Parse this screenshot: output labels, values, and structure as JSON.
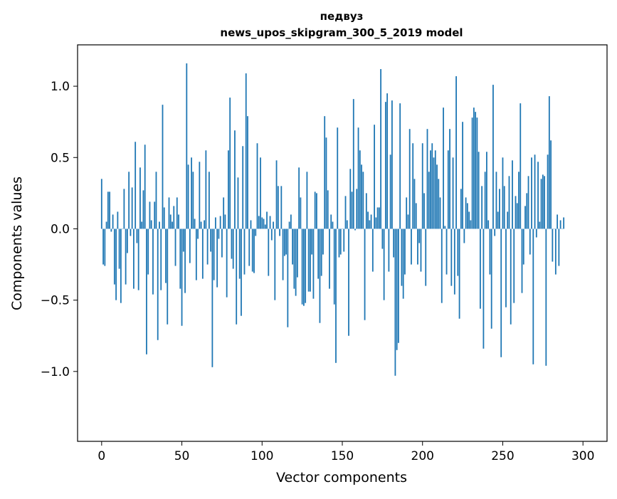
{
  "chart_data": {
    "type": "bar",
    "title": "педвуз",
    "subtitle": "news_upos_skipgram_300_5_2019 model",
    "xlabel": "Vector components",
    "ylabel": "Components values",
    "xlim": [
      -15,
      315
    ],
    "ylim": [
      -1.49,
      1.29
    ],
    "x_ticks": [
      0,
      50,
      100,
      150,
      200,
      250,
      300
    ],
    "y_ticks": [
      -1.0,
      -0.5,
      0.0,
      0.5,
      1.0
    ],
    "x_tick_labels": [
      "0",
      "50",
      "100",
      "150",
      "200",
      "250",
      "300"
    ],
    "y_tick_labels": [
      "−1.0",
      "−0.5",
      "0.0",
      "0.5",
      "1.0"
    ],
    "bar_color": "#1f77b4",
    "grid": false,
    "values": [
      0.35,
      -0.25,
      -0.26,
      0.05,
      0.26,
      0.26,
      -0.02,
      0.1,
      -0.39,
      -0.5,
      0.12,
      -0.28,
      -0.52,
      0.0,
      0.28,
      -0.39,
      -0.17,
      0.4,
      -0.05,
      0.29,
      -0.42,
      0.61,
      -0.1,
      -0.43,
      0.43,
      0.05,
      0.27,
      0.59,
      -0.88,
      -0.32,
      0.19,
      0.06,
      -0.46,
      0.19,
      0.4,
      -0.78,
      0.05,
      -0.43,
      0.87,
      0.15,
      -0.38,
      -0.67,
      0.22,
      0.1,
      0.05,
      0.16,
      -0.26,
      0.22,
      0.1,
      -0.42,
      -0.68,
      -0.16,
      -0.45,
      1.16,
      0.45,
      -0.24,
      0.5,
      0.4,
      0.07,
      -0.36,
      -0.07,
      0.47,
      0.05,
      -0.35,
      0.06,
      0.55,
      -0.25,
      0.4,
      -0.16,
      -0.97,
      -0.36,
      0.08,
      -0.41,
      -0.07,
      0.09,
      -0.2,
      0.22,
      0.1,
      -0.48,
      0.55,
      0.92,
      -0.21,
      -0.28,
      0.69,
      -0.67,
      0.36,
      -0.35,
      -0.61,
      0.58,
      -0.32,
      1.09,
      0.79,
      -0.26,
      0.06,
      -0.3,
      -0.31,
      -0.05,
      0.6,
      0.09,
      0.5,
      0.08,
      0.07,
      0.03,
      0.12,
      -0.33,
      0.09,
      -0.08,
      0.05,
      -0.5,
      0.48,
      0.3,
      -0.05,
      0.3,
      -0.36,
      -0.19,
      -0.18,
      -0.69,
      0.05,
      0.1,
      -0.25,
      -0.42,
      -0.47,
      -0.34,
      0.43,
      0.22,
      -0.53,
      -0.54,
      -0.52,
      0.4,
      -0.44,
      -0.44,
      -0.18,
      -0.49,
      0.26,
      0.25,
      -0.35,
      -0.66,
      -0.33,
      -0.18,
      0.79,
      0.64,
      0.27,
      -0.42,
      0.1,
      0.05,
      -0.53,
      -0.94,
      0.71,
      -0.2,
      -0.18,
      0.0,
      -0.16,
      0.23,
      0.06,
      -0.75,
      0.42,
      0.26,
      0.91,
      -0.01,
      0.28,
      0.71,
      0.55,
      0.45,
      0.4,
      -0.64,
      0.25,
      0.12,
      0.06,
      0.1,
      -0.3,
      0.73,
      0.08,
      0.15,
      0.15,
      1.12,
      -0.14,
      -0.5,
      0.89,
      0.95,
      -0.3,
      0.52,
      0.9,
      -0.2,
      -1.03,
      -0.85,
      -0.8,
      0.88,
      -0.4,
      -0.49,
      -0.32,
      0.22,
      0.1,
      0.7,
      -0.25,
      0.6,
      0.35,
      0.18,
      -0.25,
      -0.1,
      -0.3,
      0.6,
      0.25,
      -0.4,
      0.7,
      0.4,
      0.55,
      0.6,
      0.5,
      0.55,
      0.45,
      0.35,
      0.22,
      -0.52,
      0.85,
      0.02,
      -0.32,
      0.55,
      0.7,
      -0.4,
      0.5,
      -0.46,
      1.07,
      -0.33,
      -0.63,
      0.28,
      0.75,
      -0.1,
      0.22,
      0.18,
      0.12,
      0.06,
      0.78,
      0.85,
      0.82,
      0.78,
      0.54,
      -0.56,
      0.3,
      -0.84,
      0.4,
      0.54,
      0.06,
      -0.32,
      -0.7,
      1.01,
      -0.05,
      0.4,
      0.12,
      0.28,
      -0.9,
      0.5,
      0.3,
      -0.55,
      0.12,
      0.37,
      -0.67,
      0.48,
      -0.52,
      0.23,
      0.18,
      0.4,
      0.88,
      -0.45,
      -0.25,
      0.16,
      0.25,
      0.37,
      -0.18,
      0.5,
      -0.95,
      0.52,
      -0.06,
      0.47,
      0.05,
      0.35,
      0.38,
      0.37,
      -0.96,
      0.52,
      0.93,
      0.62,
      -0.23,
      0.0,
      -0.32,
      0.1,
      -0.26,
      0.06,
      0.0,
      0.08
    ]
  }
}
